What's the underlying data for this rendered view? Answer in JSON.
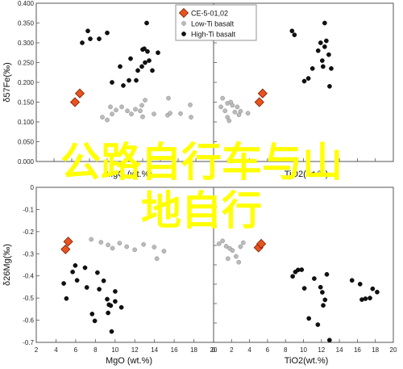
{
  "chart_data": [
    {
      "type": "scatter",
      "panel": "top-left",
      "xlabel": "MgO (wt.%)",
      "ylabel": "δ57Fe(‰)",
      "xlim": [
        0,
        22
      ],
      "ylim": [
        0,
        0.4
      ],
      "xticks": [],
      "yticks": [
        "0.000",
        "0.050",
        "0.100",
        "0.150",
        "0.200",
        "0.250",
        "0.300",
        "0.350",
        "0.400"
      ],
      "legend": {
        "placement": "top-right",
        "entries": [
          "CE-5-01,02",
          "Low-Ti basalt",
          "High-Ti basalt"
        ]
      },
      "series": [
        {
          "name": "CE-5-01,02",
          "color": "#e8531e",
          "marker": "diamond",
          "points": [
            [
              4.8,
              0.15
            ],
            [
              5.4,
              0.172
            ]
          ]
        },
        {
          "name": "Low-Ti basalt",
          "color": "#bbbbbb",
          "marker": "circle",
          "points": [
            [
              8.2,
              0.112
            ],
            [
              8.8,
              0.105
            ],
            [
              9.4,
              0.12
            ],
            [
              9.2,
              0.138
            ],
            [
              9.9,
              0.13
            ],
            [
              10.6,
              0.138
            ],
            [
              11.3,
              0.128
            ],
            [
              11.8,
              0.12
            ],
            [
              12.3,
              0.132
            ],
            [
              12.9,
              0.128
            ],
            [
              13.1,
              0.142
            ],
            [
              13.5,
              0.155
            ],
            [
              13.2,
              0.113
            ],
            [
              14.6,
              0.12
            ],
            [
              16.3,
              0.117
            ],
            [
              16.6,
              0.122
            ],
            [
              17.9,
              0.121
            ],
            [
              19.1,
              0.143
            ],
            [
              16.4,
              0.16
            ],
            [
              19.2,
              0.112
            ]
          ]
        },
        {
          "name": "High-Ti basalt",
          "color": "#111111",
          "marker": "circle",
          "points": [
            [
              5.7,
              0.3
            ],
            [
              6.4,
              0.33
            ],
            [
              6.7,
              0.31
            ],
            [
              7.8,
              0.31
            ],
            [
              8.8,
              0.325
            ],
            [
              9.4,
              0.2
            ],
            [
              10.4,
              0.24
            ],
            [
              10.8,
              0.192
            ],
            [
              11.5,
              0.205
            ],
            [
              11.7,
              0.26
            ],
            [
              12.4,
              0.205
            ],
            [
              12.6,
              0.23
            ],
            [
              13.2,
              0.283
            ],
            [
              13.4,
              0.285
            ],
            [
              13.8,
              0.278
            ],
            [
              13.1,
              0.24
            ],
            [
              13.5,
              0.25
            ],
            [
              14.0,
              0.255
            ],
            [
              14.4,
              0.23
            ],
            [
              13.7,
              0.35
            ],
            [
              15.1,
              0.275
            ]
          ]
        }
      ]
    },
    {
      "type": "scatter",
      "panel": "top-right",
      "xlabel": "TiO2(wt.%)",
      "ylabel": "",
      "xlim": [
        0,
        22
      ],
      "ylim": [
        0,
        0.4
      ],
      "xticks": [],
      "yticks": [],
      "series": [
        {
          "name": "CE-5-01,02",
          "color": "#e8531e",
          "marker": "diamond",
          "points": [
            [
              5.6,
              0.15
            ],
            [
              6.0,
              0.172
            ]
          ]
        },
        {
          "name": "Low-Ti basalt",
          "color": "#bbbbbb",
          "marker": "circle",
          "points": [
            [
              0.9,
              0.138
            ],
            [
              1.4,
              0.128
            ],
            [
              1.7,
              0.112
            ],
            [
              1.9,
              0.103
            ],
            [
              2.3,
              0.142
            ],
            [
              2.6,
              0.125
            ],
            [
              2.9,
              0.138
            ],
            [
              3.1,
              0.118
            ],
            [
              1.1,
              0.16
            ],
            [
              1.7,
              0.147
            ],
            [
              2.1,
              0.15
            ],
            [
              3.3,
              0.127
            ],
            [
              4.2,
              0.122
            ]
          ]
        },
        {
          "name": "High-Ti basalt",
          "color": "#111111",
          "marker": "circle",
          "points": [
            [
              9.6,
              0.33
            ],
            [
              9.9,
              0.32
            ],
            [
              11.1,
              0.203
            ],
            [
              11.6,
              0.21
            ],
            [
              12.1,
              0.235
            ],
            [
              12.8,
              0.28
            ],
            [
              13.1,
              0.3
            ],
            [
              13.4,
              0.24
            ],
            [
              13.6,
              0.29
            ],
            [
              13.8,
              0.305
            ],
            [
              14.1,
              0.27
            ],
            [
              14.4,
              0.235
            ],
            [
              14.2,
              0.19
            ],
            [
              13.6,
              0.35
            ],
            [
              13.3,
              0.255
            ]
          ]
        }
      ]
    },
    {
      "type": "scatter",
      "panel": "bottom-left",
      "xlabel": "MgO (wt.%)",
      "ylabel": "δ26Mg(‰)",
      "xlim": [
        2,
        22
      ],
      "ylim": [
        -0.7,
        0
      ],
      "xticks": [
        "2",
        "4",
        "6",
        "8",
        "10",
        "12",
        "14",
        "16",
        "18",
        "20"
      ],
      "yticks": [
        "0",
        "-0.1",
        "-0.2",
        "-0.3",
        "-0.4",
        "-0.5",
        "-0.6",
        "-0.7"
      ],
      "series": [
        {
          "name": "CE-5-01,02",
          "color": "#e8531e",
          "marker": "diamond",
          "points": [
            [
              5.3,
              -0.28
            ],
            [
              5.6,
              -0.245
            ]
          ]
        },
        {
          "name": "Low-Ti basalt",
          "color": "#bbbbbb",
          "marker": "circle",
          "points": [
            [
              8.2,
              -0.235
            ],
            [
              9.3,
              -0.248
            ],
            [
              10.1,
              -0.26
            ],
            [
              10.6,
              -0.275
            ],
            [
              11.4,
              -0.252
            ],
            [
              12.2,
              -0.268
            ],
            [
              13.1,
              -0.282
            ],
            [
              14.1,
              -0.258
            ],
            [
              15.3,
              -0.27
            ],
            [
              15.6,
              -0.322
            ],
            [
              16.4,
              -0.288
            ]
          ]
        },
        {
          "name": "High-Ti basalt",
          "color": "#111111",
          "marker": "circle",
          "points": [
            [
              5.1,
              -0.434
            ],
            [
              5.4,
              -0.502
            ],
            [
              6.1,
              -0.382
            ],
            [
              6.4,
              -0.353
            ],
            [
              6.6,
              -0.42
            ],
            [
              7.5,
              -0.363
            ],
            [
              7.7,
              -0.452
            ],
            [
              8.3,
              -0.572
            ],
            [
              8.6,
              -0.603
            ],
            [
              8.9,
              -0.385
            ],
            [
              9.1,
              -0.46
            ],
            [
              9.6,
              -0.422
            ],
            [
              10.0,
              -0.505
            ],
            [
              10.2,
              -0.53
            ],
            [
              10.4,
              -0.534
            ],
            [
              10.9,
              -0.515
            ],
            [
              10.1,
              -0.567
            ],
            [
              10.5,
              -0.651
            ],
            [
              10.9,
              -0.47
            ],
            [
              11.6,
              -0.542
            ]
          ]
        }
      ]
    },
    {
      "type": "scatter",
      "panel": "bottom-right",
      "xlabel": "TiO2(wt.%)",
      "ylabel": "",
      "xlim": [
        0,
        20
      ],
      "ylim": [
        -0.7,
        0
      ],
      "xticks": [
        "0",
        "2",
        "4",
        "6",
        "8",
        "10",
        "12",
        "14",
        "16",
        "18",
        "20"
      ],
      "yticks": [],
      "series": [
        {
          "name": "CE-5-01,02",
          "color": "#e8531e",
          "marker": "diamond",
          "points": [
            [
              5.0,
              -0.272
            ],
            [
              5.3,
              -0.255
            ]
          ]
        },
        {
          "name": "Low-Ti basalt",
          "color": "#bbbbbb",
          "marker": "circle",
          "points": [
            [
              0.6,
              -0.255
            ],
            [
              1.0,
              -0.242
            ],
            [
              1.4,
              -0.266
            ],
            [
              1.8,
              -0.276
            ],
            [
              2.1,
              -0.285
            ],
            [
              2.5,
              -0.312
            ],
            [
              3.0,
              -0.268
            ],
            [
              3.3,
              -0.25
            ],
            [
              1.6,
              -0.322
            ],
            [
              2.8,
              -0.338
            ]
          ]
        },
        {
          "name": "High-Ti basalt",
          "color": "#111111",
          "marker": "circle",
          "points": [
            [
              8.8,
              -0.402
            ],
            [
              9.1,
              -0.382
            ],
            [
              9.4,
              -0.373
            ],
            [
              9.8,
              -0.372
            ],
            [
              10.1,
              -0.456
            ],
            [
              10.6,
              -0.592
            ],
            [
              11.2,
              -0.412
            ],
            [
              11.6,
              -0.62
            ],
            [
              11.9,
              -0.451
            ],
            [
              12.1,
              -0.474
            ],
            [
              12.2,
              -0.533
            ],
            [
              12.4,
              -0.508
            ],
            [
              12.6,
              -0.393
            ],
            [
              12.9,
              -0.69
            ],
            [
              15.4,
              -0.42
            ],
            [
              16.3,
              -0.437
            ],
            [
              16.5,
              -0.507
            ],
            [
              16.9,
              -0.503
            ],
            [
              17.4,
              -0.5
            ],
            [
              17.7,
              -0.458
            ],
            [
              18.2,
              -0.473
            ]
          ]
        }
      ]
    }
  ],
  "overlay": {
    "line1": "公路自行车与山",
    "line2": "地自行"
  }
}
